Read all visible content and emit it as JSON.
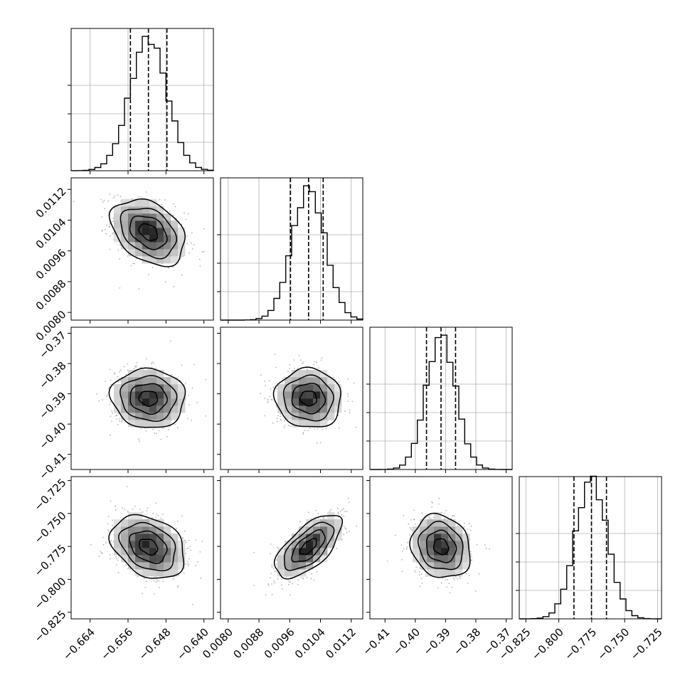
{
  "chart_data": {
    "type": "corner",
    "parameters": [
      {
        "range": [
          -0.668,
          -0.638
        ],
        "ticks": [
          -0.664,
          -0.656,
          -0.648,
          -0.64
        ],
        "tick_labels": [
          "−0.664",
          "−0.656",
          "−0.648",
          "−0.640"
        ],
        "quantiles": [
          -0.6555,
          -0.6517,
          -0.6478
        ],
        "mean": -0.6517,
        "sd": 0.0039,
        "hist_peak": 0.8
      },
      {
        "range": [
          0.0078,
          0.0115
        ],
        "ticks": [
          0.008,
          0.0088,
          0.0096,
          0.0104,
          0.0112
        ],
        "tick_labels": [
          "0.0080",
          "0.0088",
          "0.0096",
          "0.0104",
          "0.0112"
        ],
        "quantiles": [
          0.00962,
          0.01009,
          0.01047
        ],
        "mean": 0.01009,
        "sd": 0.00043,
        "hist_peak": 0.8
      },
      {
        "range": [
          -0.415,
          -0.368
        ],
        "ticks": [
          -0.41,
          -0.4,
          -0.39,
          -0.38,
          -0.37
        ],
        "tick_labels": [
          "−0.41",
          "−0.40",
          "−0.39",
          "−0.38",
          "−0.37"
        ],
        "quantiles": [
          -0.3963,
          -0.3915,
          -0.3867
        ],
        "mean": -0.3915,
        "sd": 0.0049,
        "hist_peak": 0.8
      },
      {
        "range": [
          -0.83,
          -0.722
        ],
        "ticks": [
          -0.825,
          -0.8,
          -0.775,
          -0.75,
          -0.725
        ],
        "tick_labels": [
          "−0.825",
          "−0.800",
          "−0.775",
          "−0.750",
          "−0.725"
        ],
        "quantiles": [
          -0.7885,
          -0.7752,
          -0.7638
        ],
        "mean": -0.7752,
        "sd": 0.012,
        "hist_peak": 0.85
      }
    ],
    "pair_correlations": [
      {
        "row": 1,
        "col": 0,
        "rho": -0.35
      },
      {
        "row": 2,
        "col": 0,
        "rho": -0.05
      },
      {
        "row": 2,
        "col": 1,
        "rho": -0.05
      },
      {
        "row": 3,
        "col": 0,
        "rho": -0.3
      },
      {
        "row": 3,
        "col": 1,
        "rho": 0.65
      },
      {
        "row": 3,
        "col": 2,
        "rho": -0.15
      }
    ],
    "contour_levels_sigma": [
      0.5,
      1.0,
      1.5,
      2.0
    ],
    "grid": true,
    "colors": {
      "line": "#000000",
      "scatter": "#b4b4b4",
      "grid": "#b0b0b0",
      "background": "#ffffff"
    }
  }
}
